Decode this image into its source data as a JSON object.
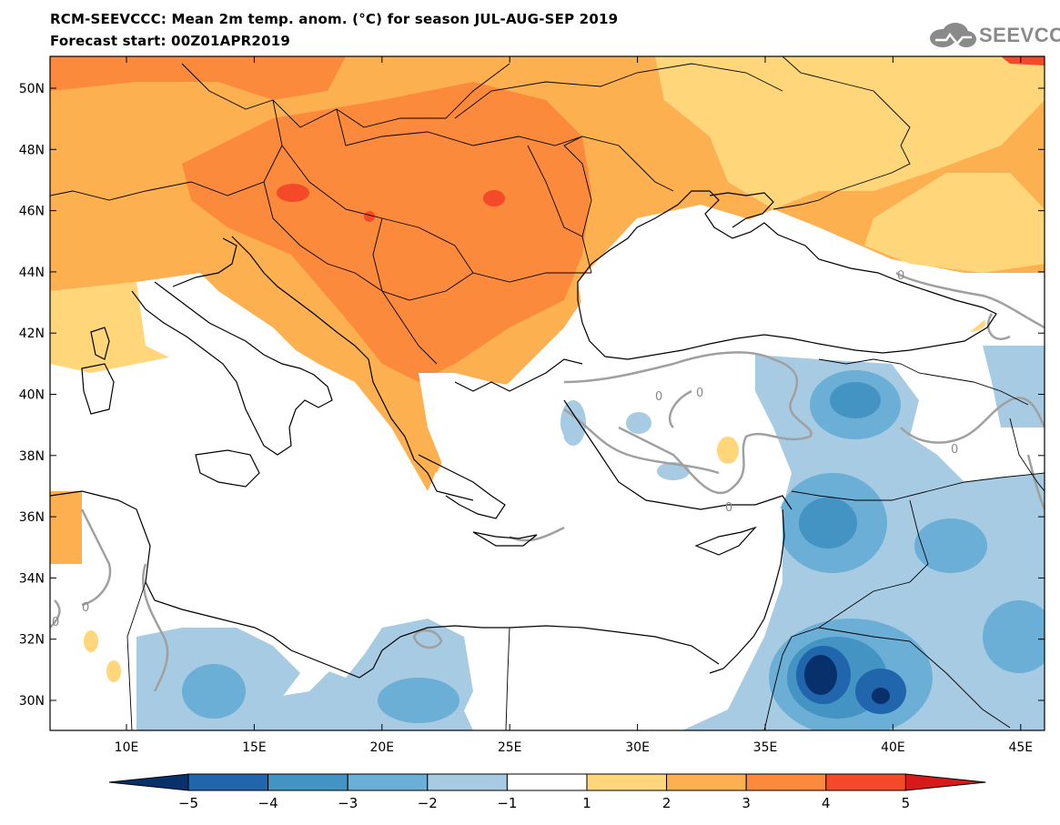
{
  "header": {
    "title": "RCM-SEEVCCC: Mean 2m temp. anom. (°C) for season JUL-AUG-SEP 2019",
    "subtitle": "Forecast start: 00Z01APR2019",
    "logo_text": "SEEVCCC"
  },
  "axes": {
    "lat_labels": [
      "50N",
      "48N",
      "46N",
      "44N",
      "42N",
      "40N",
      "38N",
      "36N",
      "34N",
      "32N",
      "30N"
    ],
    "lon_labels": [
      "10E",
      "15E",
      "20E",
      "25E",
      "30E",
      "35E",
      "40E",
      "45E"
    ]
  },
  "contour_label": "0",
  "colorbar": {
    "tick_labels": [
      "−5",
      "−4",
      "−3",
      "−2",
      "−1",
      "1",
      "2",
      "3",
      "4",
      "5"
    ],
    "colors": [
      "#08306b",
      "#2166ac",
      "#4393c3",
      "#6baed6",
      "#a6cbe3",
      "#ffffff",
      "#ffd67a",
      "#fdb050",
      "#fb8a3c",
      "#f44a2a",
      "#d7191c"
    ]
  },
  "colors": {
    "land_outline": "#000000",
    "contour": "#a0a0a0"
  }
}
